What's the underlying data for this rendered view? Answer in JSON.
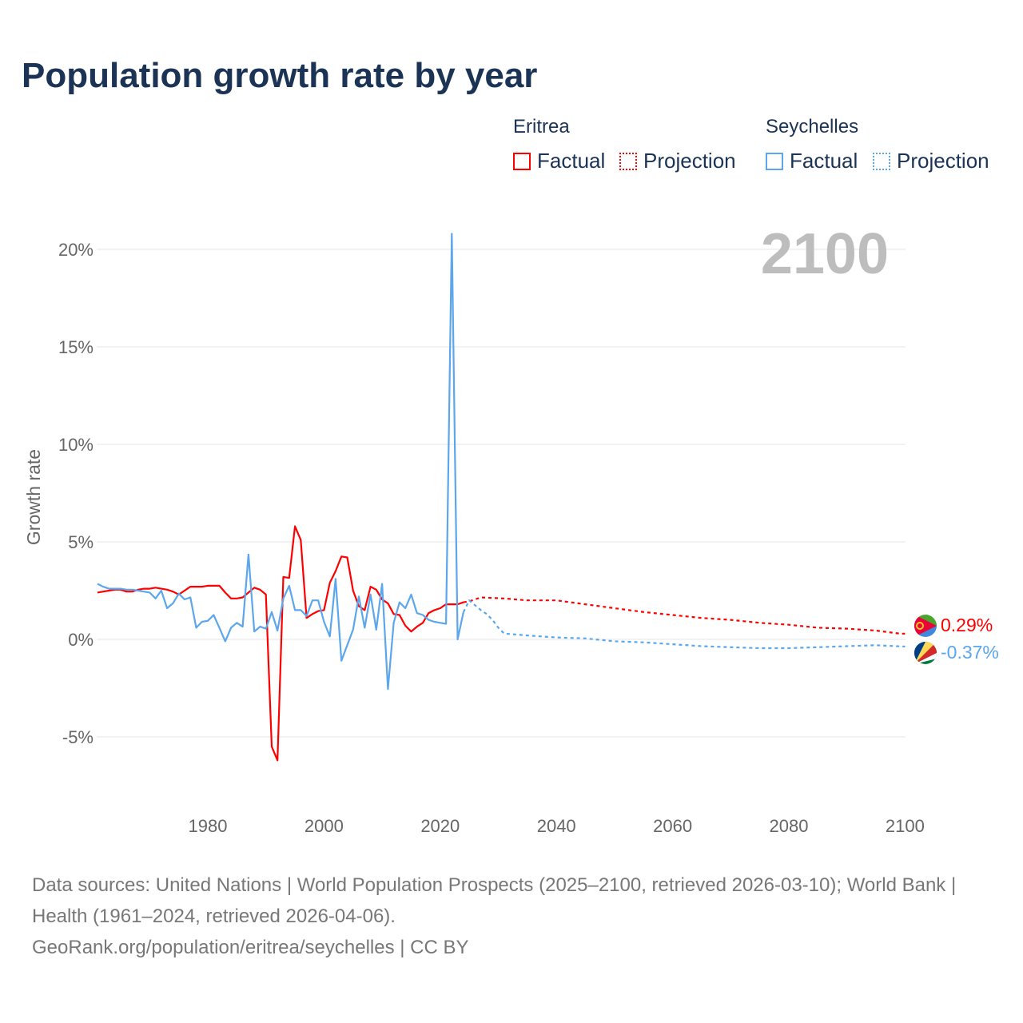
{
  "title": "Population growth rate by year",
  "legend": {
    "groups": [
      {
        "name": "Eritrea",
        "color": "#ff0000",
        "factual": "Factual",
        "projection": "Projection"
      },
      {
        "name": "Seychelles",
        "color": "#5ba6ec",
        "factual": "Factual",
        "projection": "Projection"
      }
    ]
  },
  "year_label": "2100",
  "end_labels": {
    "eritrea": "0.29%",
    "seychelles": "-0.37%"
  },
  "footer": {
    "line1": "Data sources: United Nations | World Population Prospects (2025–2100, retrieved 2026-03-10); World Bank | Health (1961–2024, retrieved 2026-04-06).",
    "line2": "GeoRank.org/population/eritrea/seychelles | CC BY"
  },
  "chart_data": {
    "type": "line",
    "title": "Population growth rate by year",
    "xlabel": "",
    "ylabel": "Growth rate",
    "xlim": [
      1961,
      2100
    ],
    "ylim": [
      -7.5,
      22
    ],
    "xticks": [
      1980,
      2000,
      2020,
      2040,
      2060,
      2080,
      2100
    ],
    "xtick_labels": [
      "1980",
      "2000",
      "2020",
      "2040",
      "2060",
      "2080",
      "2100"
    ],
    "yticks": [
      -5,
      0,
      5,
      10,
      15,
      20
    ],
    "ytick_labels": [
      "-5%",
      "0%",
      "5%",
      "10%",
      "15%",
      "20%"
    ],
    "grid": true,
    "series": [
      {
        "name": "Eritrea Factual",
        "color": "#ff0000",
        "dash": false,
        "x_start": 1961,
        "values": [
          2.4,
          2.45,
          2.5,
          2.55,
          2.55,
          2.45,
          2.45,
          2.55,
          2.6,
          2.6,
          2.65,
          2.6,
          2.55,
          2.45,
          2.3,
          2.5,
          2.7,
          2.7,
          2.7,
          2.75,
          2.75,
          2.75,
          2.4,
          2.1,
          2.1,
          2.15,
          2.4,
          2.65,
          2.55,
          2.3,
          -5.5,
          -6.2,
          3.2,
          3.15,
          5.8,
          5.1,
          1.1,
          1.3,
          1.45,
          1.5,
          2.9,
          3.5,
          4.25,
          4.2,
          2.5,
          1.7,
          1.5,
          2.7,
          2.55,
          2.05,
          1.85,
          1.3,
          1.25,
          0.7,
          0.4,
          0.65,
          0.85,
          1.35,
          1.5,
          1.6,
          1.8,
          1.8,
          1.8,
          1.9
        ]
      },
      {
        "name": "Eritrea Projection",
        "color": "#ff0000",
        "dash": true,
        "x": [
          2024,
          2025,
          2027,
          2031,
          2035,
          2040,
          2045,
          2050,
          2055,
          2060,
          2065,
          2070,
          2075,
          2080,
          2085,
          2090,
          2095,
          2099,
          2100
        ],
        "values": [
          1.9,
          1.95,
          2.15,
          2.1,
          2.0,
          2.0,
          1.8,
          1.6,
          1.4,
          1.25,
          1.1,
          1.0,
          0.85,
          0.75,
          0.6,
          0.55,
          0.45,
          0.3,
          0.29
        ]
      },
      {
        "name": "Seychelles Factual",
        "color": "#5ba6ec",
        "dash": false,
        "x_start": 1961,
        "values": [
          2.85,
          2.7,
          2.6,
          2.6,
          2.6,
          2.55,
          2.55,
          2.5,
          2.45,
          2.4,
          2.1,
          2.5,
          1.6,
          1.85,
          2.35,
          2.05,
          2.15,
          0.6,
          0.9,
          0.95,
          1.25,
          0.6,
          -0.1,
          0.6,
          0.85,
          0.65,
          4.35,
          0.4,
          0.65,
          0.55,
          1.4,
          0.45,
          2.1,
          2.75,
          1.5,
          1.5,
          1.2,
          2.0,
          2.0,
          0.9,
          0.15,
          3.1,
          -1.1,
          -0.3,
          0.5,
          2.2,
          0.6,
          2.3,
          0.5,
          2.85,
          -2.55,
          0.85,
          1.9,
          1.6,
          2.3,
          1.35,
          1.25,
          1.0,
          0.9,
          0.85,
          0.8,
          20.8,
          0.0,
          1.4
        ]
      },
      {
        "name": "Seychelles Projection",
        "color": "#5ba6ec",
        "dash": true,
        "x": [
          2024,
          2025,
          2026,
          2027,
          2028,
          2029,
          2030,
          2031,
          2035,
          2040,
          2045,
          2050,
          2055,
          2060,
          2065,
          2070,
          2075,
          2080,
          2085,
          2090,
          2095,
          2100
        ],
        "values": [
          1.4,
          2.0,
          1.75,
          1.5,
          1.3,
          1.0,
          0.6,
          0.3,
          0.2,
          0.1,
          0.05,
          -0.1,
          -0.15,
          -0.25,
          -0.35,
          -0.4,
          -0.45,
          -0.45,
          -0.4,
          -0.35,
          -0.3,
          -0.37
        ]
      }
    ]
  }
}
